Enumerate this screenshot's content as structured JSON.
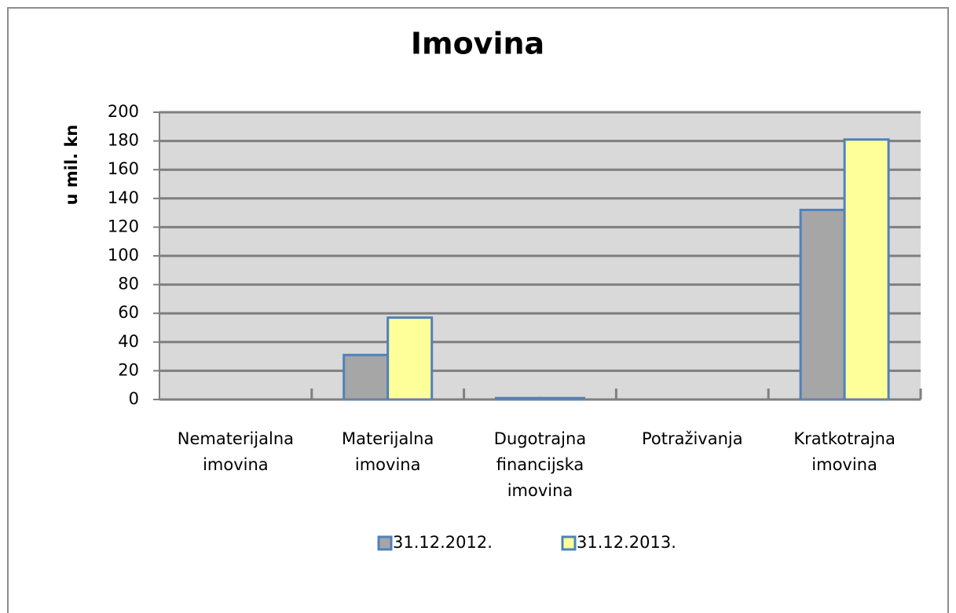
{
  "chart_data": {
    "type": "bar",
    "title": "Imovina",
    "y_label": "u mil. kn",
    "categories": [
      "Nematerijalna imovina",
      "Materijalna imovina",
      "Dugotrajna financijska imovina",
      "Potraživanja",
      "Kratkotrajna imovina"
    ],
    "series": [
      {
        "name": "31.12.2012.",
        "color": "#a6a6a6",
        "values": [
          0,
          31,
          1,
          0,
          132
        ]
      },
      {
        "name": "31.12.2013.",
        "color": "#ffff99",
        "values": [
          0,
          57,
          1,
          0,
          181
        ]
      }
    ],
    "ylim": [
      0,
      200
    ],
    "yticks": [
      0,
      20,
      40,
      60,
      80,
      100,
      120,
      140,
      160,
      180,
      200
    ],
    "grid": true,
    "legend": "bottom"
  }
}
